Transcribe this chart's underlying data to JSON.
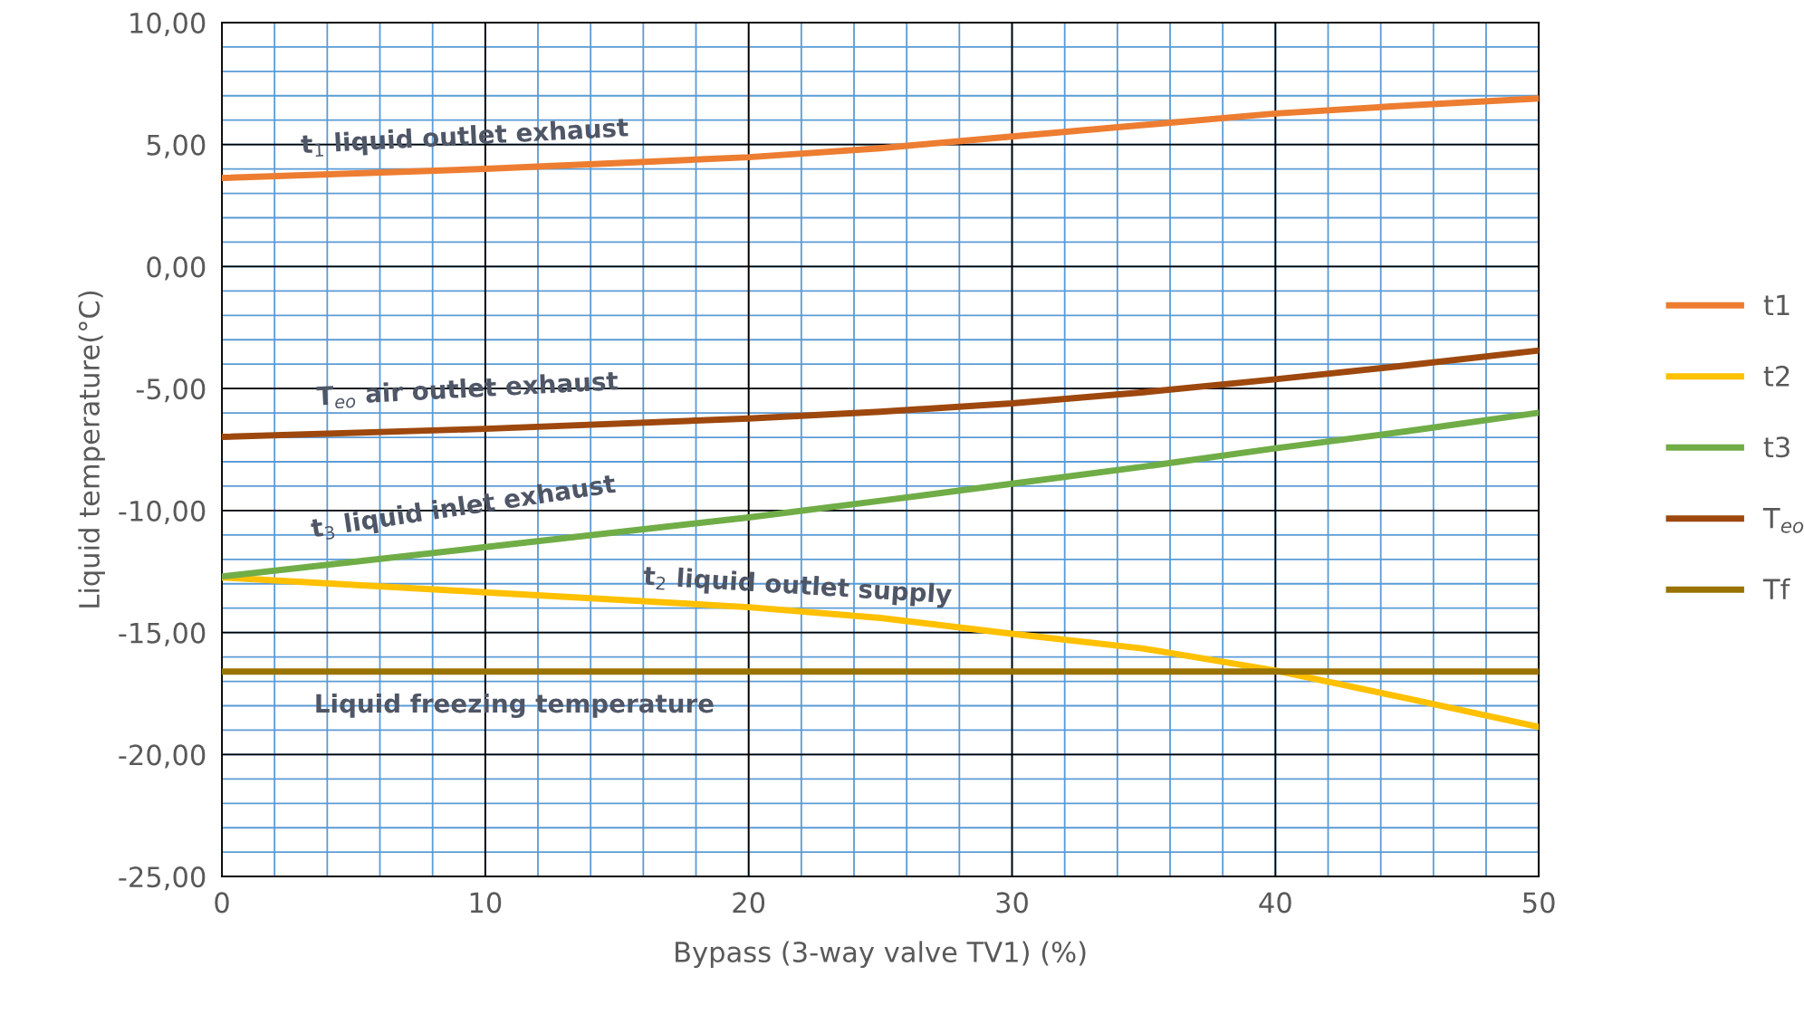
{
  "chart_data": {
    "type": "line",
    "xlabel": "Bypass (3-way valve TV1) (%)",
    "ylabel": "Liquid temperature(°C)",
    "x": [
      0,
      10,
      20,
      25,
      30,
      35,
      40,
      45,
      50
    ],
    "series": [
      {
        "name": "t1",
        "color": "#ed7d31",
        "values": [
          3.63,
          4.0,
          4.48,
          4.85,
          5.33,
          5.8,
          6.27,
          6.6,
          6.89
        ]
      },
      {
        "name": "t2",
        "color": "#ffc000",
        "values": [
          -12.74,
          -13.35,
          -13.96,
          -14.4,
          -15.05,
          -15.66,
          -16.56,
          -17.7,
          -18.87
        ]
      },
      {
        "name": "t3",
        "color": "#70ad47",
        "values": [
          -12.7,
          -11.5,
          -10.28,
          -9.6,
          -8.9,
          -8.2,
          -7.45,
          -6.75,
          -5.99
        ]
      },
      {
        "name": "T$_{eo}$",
        "color": "#9e480e",
        "values": [
          -6.98,
          -6.65,
          -6.23,
          -5.95,
          -5.61,
          -5.15,
          -4.62,
          -4.05,
          -3.44
        ]
      },
      {
        "name": "Tf",
        "color": "#997300",
        "values": [
          -16.6,
          -16.6,
          -16.6,
          -16.6,
          -16.6,
          -16.6,
          -16.6,
          -16.6,
          -16.6
        ]
      }
    ],
    "xlim": [
      0,
      50
    ],
    "xticks": [
      0,
      10,
      20,
      30,
      40,
      50
    ],
    "ylim": [
      -25,
      10
    ],
    "yticks": [
      {
        "value": -25,
        "label": "-25,00"
      },
      {
        "value": -20,
        "label": "-20,00"
      },
      {
        "value": -15,
        "label": "-15,00"
      },
      {
        "value": -10,
        "label": "-10,00"
      },
      {
        "value": -5,
        "label": "-5,00"
      },
      {
        "value": 0,
        "label": "0,00"
      },
      {
        "value": 5,
        "label": "5,00"
      },
      {
        "value": 10,
        "label": "10,00"
      }
    ],
    "annotations": [
      "t$_{1}$ liquid outlet exhaust",
      "T$_{eo}$ air outlet exhaust",
      "t$_{3}$ liquid inlet exhaust",
      "t$_{2}$ liquid outlet supply",
      "Liquid freezing temperature"
    ],
    "grid": true,
    "legend": "right",
    "marker": "none",
    "line_style": "solid"
  }
}
